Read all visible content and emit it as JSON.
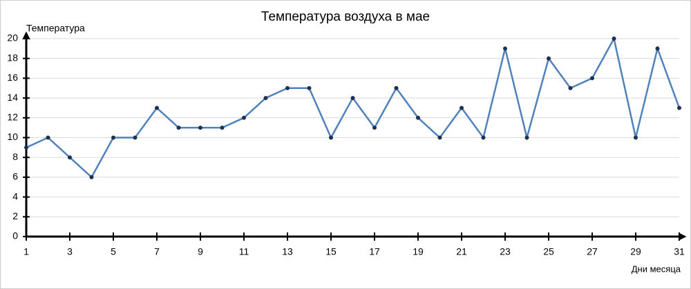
{
  "chart_data": {
    "type": "line",
    "title": "Температура воздуха в мае",
    "y_label": "Температура",
    "x_label": "Дни месяца",
    "x": [
      1,
      2,
      3,
      4,
      5,
      6,
      7,
      8,
      9,
      10,
      11,
      12,
      13,
      14,
      15,
      16,
      17,
      18,
      19,
      20,
      21,
      22,
      23,
      24,
      25,
      26,
      27,
      28,
      29,
      30,
      31
    ],
    "series": [
      {
        "name": "Температура",
        "color": "#4f81bd",
        "marker_color": "#1f3050",
        "values": [
          9,
          10,
          8,
          6,
          10,
          10,
          13,
          11,
          11,
          11,
          12,
          14,
          15,
          15,
          10,
          14,
          11,
          15,
          12,
          10,
          13,
          10,
          19,
          10,
          18,
          15,
          16,
          20,
          10,
          19,
          13
        ]
      }
    ],
    "xlim": [
      1,
      31
    ],
    "xticks": [
      1,
      3,
      5,
      7,
      9,
      11,
      13,
      15,
      17,
      19,
      21,
      23,
      25,
      27,
      29,
      31
    ],
    "ylim": [
      0,
      20
    ],
    "yticks": [
      0,
      2,
      4,
      6,
      8,
      10,
      12,
      14,
      16,
      18,
      20
    ],
    "grid": true
  }
}
